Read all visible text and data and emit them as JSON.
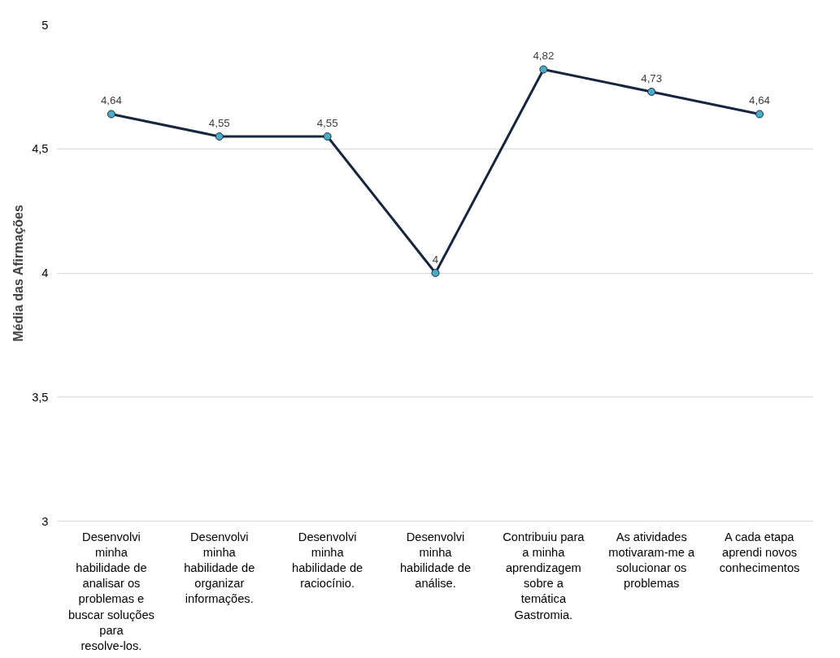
{
  "chart_data": {
    "type": "line",
    "ylabel": "Média das Afirmações",
    "categories": [
      "Desenvolvi minha habilidade de analisar os problemas e buscar soluções para resolve-los.",
      "Desenvolvi minha habilidade de organizar informações.",
      "Desenvolvi minha habilidade de raciocínio.",
      "Desenvolvi minha habilidade de análise.",
      "Contribuiu para a minha aprendizagem sobre a temática Gastromia.",
      "As atividades motivaram-me a solucionar os problemas",
      "A cada etapa aprendi novos conhecimentos"
    ],
    "series": [
      {
        "color": "#17263f",
        "values": [
          4.64,
          4.55,
          4.55,
          4.0,
          4.82,
          4.73,
          4.64
        ]
      }
    ],
    "value_labels": [
      "4,64",
      "4,55",
      "4,55",
      "4",
      "4,82",
      "4,73",
      "4,64"
    ],
    "marker": "circle",
    "line_style": "solid",
    "ylim": [
      3,
      5
    ],
    "yticks": [
      3,
      {
        "value": 3.5,
        "label": "3,5"
      },
      4,
      {
        "value": 4.5,
        "label": "4,5"
      },
      5
    ],
    "grid": "y"
  }
}
